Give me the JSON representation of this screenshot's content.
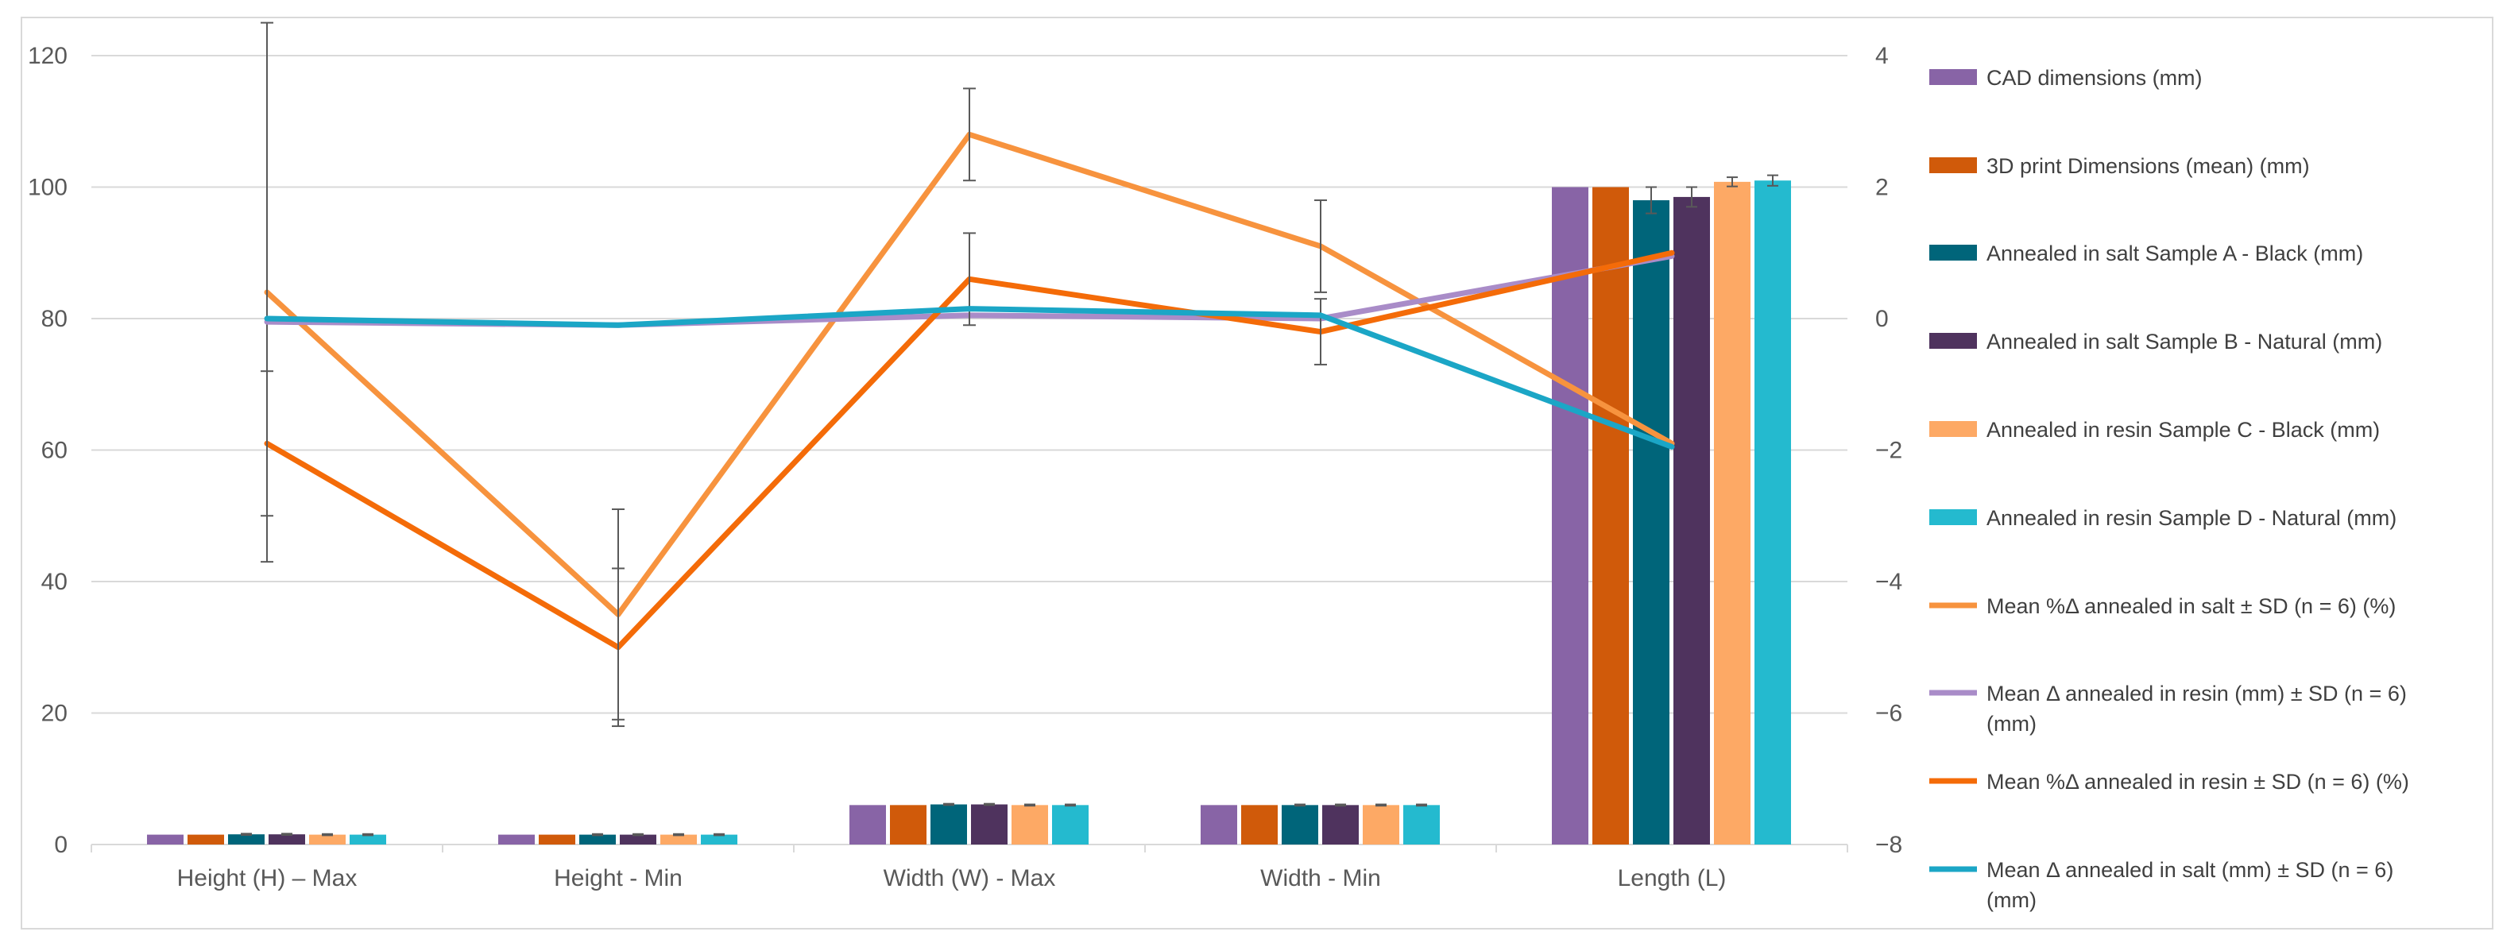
{
  "chart_data": {
    "type": "bar",
    "title": "",
    "categories": [
      "Height (H) – Max",
      "Height - Min",
      "Width (W) - Max",
      "Width - Min",
      "Length (L)"
    ],
    "y_left": {
      "ylim": [
        0,
        120
      ],
      "ticks": [
        0,
        20,
        40,
        60,
        80,
        100,
        120
      ]
    },
    "y_right": {
      "ylim": [
        -8,
        4
      ],
      "ticks": [
        -8,
        -6,
        -4,
        -2,
        0,
        2,
        4
      ]
    },
    "grid": "horizontal",
    "legend_position": "right",
    "bar_series": [
      {
        "name": "CAD dimensions (mm)",
        "color": "#8864A6",
        "values": [
          1.5,
          1.5,
          6.0,
          6.0,
          100
        ],
        "errors": null
      },
      {
        "name": "3D print Dimensions (mean) (mm)",
        "color": "#D05A0A",
        "values": [
          1.5,
          1.5,
          6.0,
          6.0,
          100
        ],
        "errors": null
      },
      {
        "name": "Annealed in salt Sample A - Black (mm)",
        "color": "#00657A",
        "values": [
          1.55,
          1.5,
          6.1,
          6.0,
          98.0
        ],
        "errors": [
          0.1,
          0.1,
          0.1,
          0.1,
          2.0
        ]
      },
      {
        "name": "Annealed in salt Sample B - Natural (mm)",
        "color": "#4F335E",
        "values": [
          1.55,
          1.5,
          6.1,
          6.0,
          98.5
        ],
        "errors": [
          0.1,
          0.1,
          0.1,
          0.1,
          1.5
        ]
      },
      {
        "name": "Annealed in resin Sample C - Black (mm)",
        "color": "#FDA965",
        "values": [
          1.5,
          1.5,
          6.0,
          6.0,
          100.8
        ],
        "errors": [
          0.1,
          0.1,
          0.1,
          0.1,
          0.7
        ]
      },
      {
        "name": "Annealed in resin Sample D - Natural (mm)",
        "color": "#24BACF",
        "values": [
          1.5,
          1.5,
          6.0,
          6.0,
          101.0
        ],
        "errors": [
          0.1,
          0.1,
          0.1,
          0.1,
          0.8
        ]
      }
    ],
    "line_series": [
      {
        "name": "Mean %Δ annealed in salt ± SD (n = 6)  (%)",
        "color": "#F7933E",
        "axis": "right",
        "values": [
          0.4,
          -4.5,
          2.8,
          1.1,
          -1.9
        ],
        "errors": [
          4.1,
          1.6,
          0.7,
          0.7,
          0
        ]
      },
      {
        "name": "Mean Δ annealed in resin (mm) ± SD (n = 6) (mm)",
        "color": "#A98CC8",
        "axis": "right",
        "values": [
          -0.05,
          -0.1,
          0.05,
          0.0,
          0.95
        ],
        "errors": null
      },
      {
        "name": "Mean %Δ annealed in resin ± SD (n = 6)  (%)",
        "color": "#F46B08",
        "axis": "right",
        "values": [
          -1.9,
          -5.0,
          0.6,
          -0.2,
          1.0
        ],
        "errors": [
          1.1,
          1.2,
          0.7,
          0.5,
          0
        ]
      },
      {
        "name": "Mean Δ annealed in salt (mm) ± SD (n = 6) (mm)",
        "color": "#1BA6C6",
        "axis": "right",
        "values": [
          0.0,
          -0.1,
          0.15,
          0.05,
          -1.95
        ],
        "errors": null
      }
    ]
  }
}
